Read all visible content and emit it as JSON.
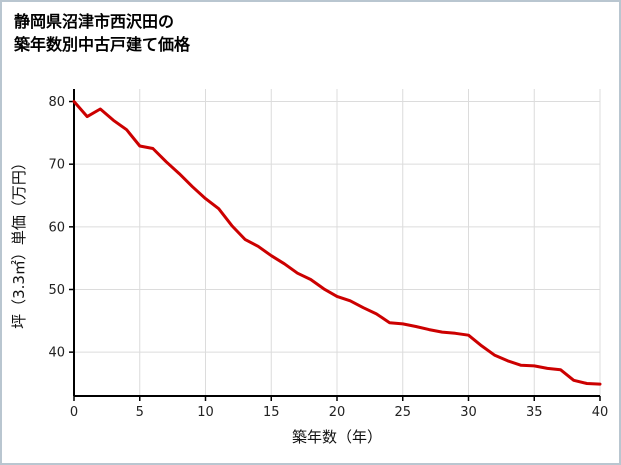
{
  "title_lines": [
    "静岡県沼津市西沢田の",
    "築年数別中古戸建て価格"
  ],
  "chart_data": {
    "type": "line",
    "title": "静岡県沼津市西沢田の築年数別中古戸建て価格",
    "xlabel": "築年数（年）",
    "ylabel": "坪（3.3㎡）単価（万円）",
    "xlim": [
      0,
      40
    ],
    "ylim": [
      33,
      82
    ],
    "x_ticks": [
      0,
      5,
      10,
      15,
      20,
      25,
      30,
      35,
      40
    ],
    "y_ticks": [
      40,
      50,
      60,
      70,
      80
    ],
    "grid": true,
    "legend": false,
    "x": [
      0,
      1,
      2,
      3,
      4,
      5,
      6,
      7,
      8,
      9,
      10,
      11,
      12,
      13,
      14,
      15,
      16,
      17,
      18,
      19,
      20,
      21,
      22,
      23,
      24,
      25,
      26,
      27,
      28,
      29,
      30,
      31,
      32,
      33,
      34,
      35,
      36,
      37,
      38,
      39,
      40
    ],
    "values": [
      80,
      77.6,
      78.8,
      77.0,
      75.5,
      72.9,
      72.5,
      70.4,
      68.5,
      66.4,
      64.5,
      62.9,
      60.2,
      58.0,
      56.9,
      55.4,
      54.1,
      52.6,
      51.6,
      50.1,
      48.9,
      48.2,
      47.1,
      46.1,
      44.7,
      44.5,
      44.1,
      43.6,
      43.2,
      43.0,
      42.7,
      41.0,
      39.5,
      38.6,
      37.9,
      37.8,
      37.4,
      37.2,
      35.5,
      35.0,
      34.9
    ],
    "colors": {
      "line": "#cc0000",
      "grid": "#dcdcdc",
      "axis": "#000000"
    }
  }
}
